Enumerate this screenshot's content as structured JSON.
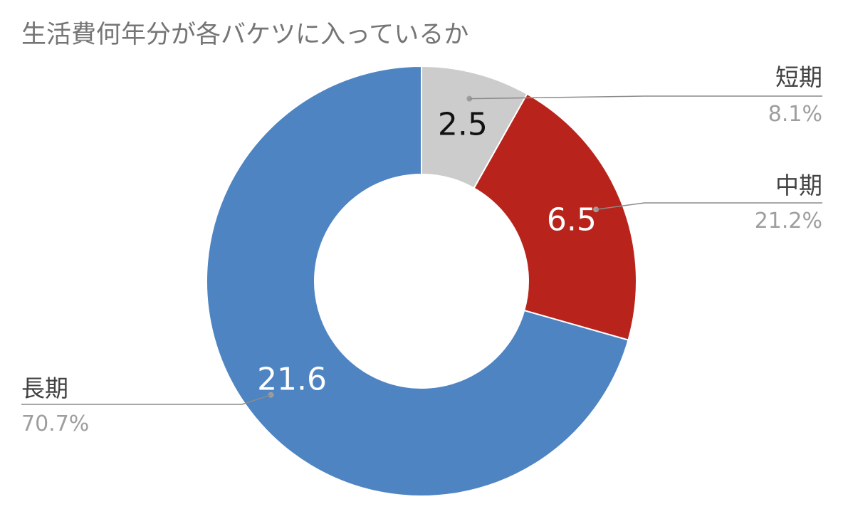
{
  "chart_data": {
    "type": "pie",
    "title": "生活費何年分が各バケツに入っているか",
    "donut": true,
    "categories": [
      "短期",
      "中期",
      "長期"
    ],
    "values": [
      2.5,
      6.5,
      21.6
    ],
    "value_labels": [
      "2.5",
      "6.5",
      "21.6"
    ],
    "percent_labels": [
      "8.1%",
      "21.2%",
      "70.7%"
    ],
    "colors": [
      "#cccccc",
      "#b8241c",
      "#4e84c2"
    ],
    "value_label_colors": [
      "#111111",
      "#ffffff",
      "#ffffff"
    ],
    "start_angle": "12 o'clock",
    "direction": "clockwise",
    "legend": "outside labels with leader lines"
  }
}
